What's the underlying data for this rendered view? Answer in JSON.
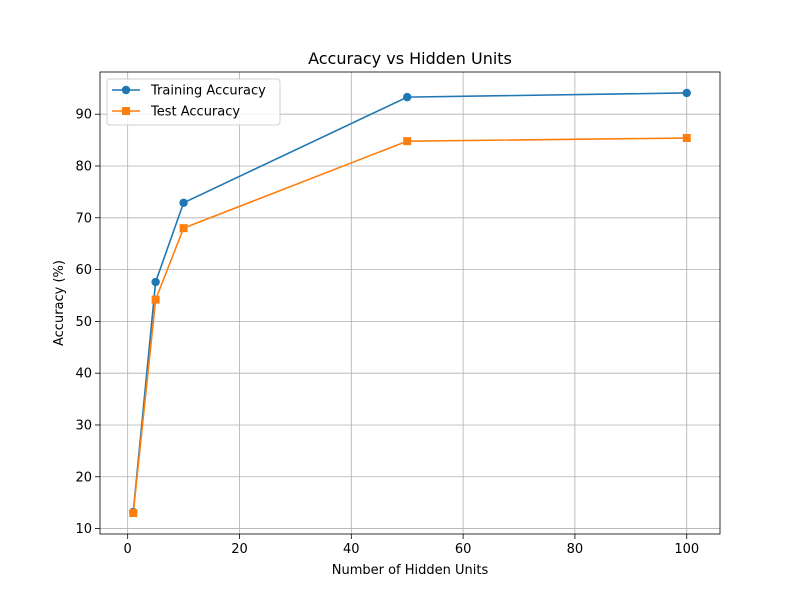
{
  "chart_data": {
    "type": "line",
    "title": "Accuracy vs Hidden Units",
    "xlabel": "Number of Hidden Units",
    "ylabel": "Accuracy (%)",
    "x": [
      1,
      5,
      10,
      50,
      100
    ],
    "series": [
      {
        "name": "Training Accuracy",
        "values": [
          13.2,
          57.6,
          72.9,
          93.3,
          94.1
        ],
        "color": "#1f77b4",
        "marker": "circle"
      },
      {
        "name": "Test Accuracy",
        "values": [
          13.0,
          54.2,
          68.0,
          84.8,
          85.4
        ],
        "color": "#ff7f0e",
        "marker": "square"
      }
    ],
    "xlim": [
      -4.95,
      105.95
    ],
    "ylim": [
      8.95,
      98.15
    ],
    "xticks": [
      0,
      20,
      40,
      60,
      80,
      100
    ],
    "yticks": [
      10,
      20,
      30,
      40,
      50,
      60,
      70,
      80,
      90
    ],
    "grid": true,
    "legend_position": "upper-left"
  }
}
